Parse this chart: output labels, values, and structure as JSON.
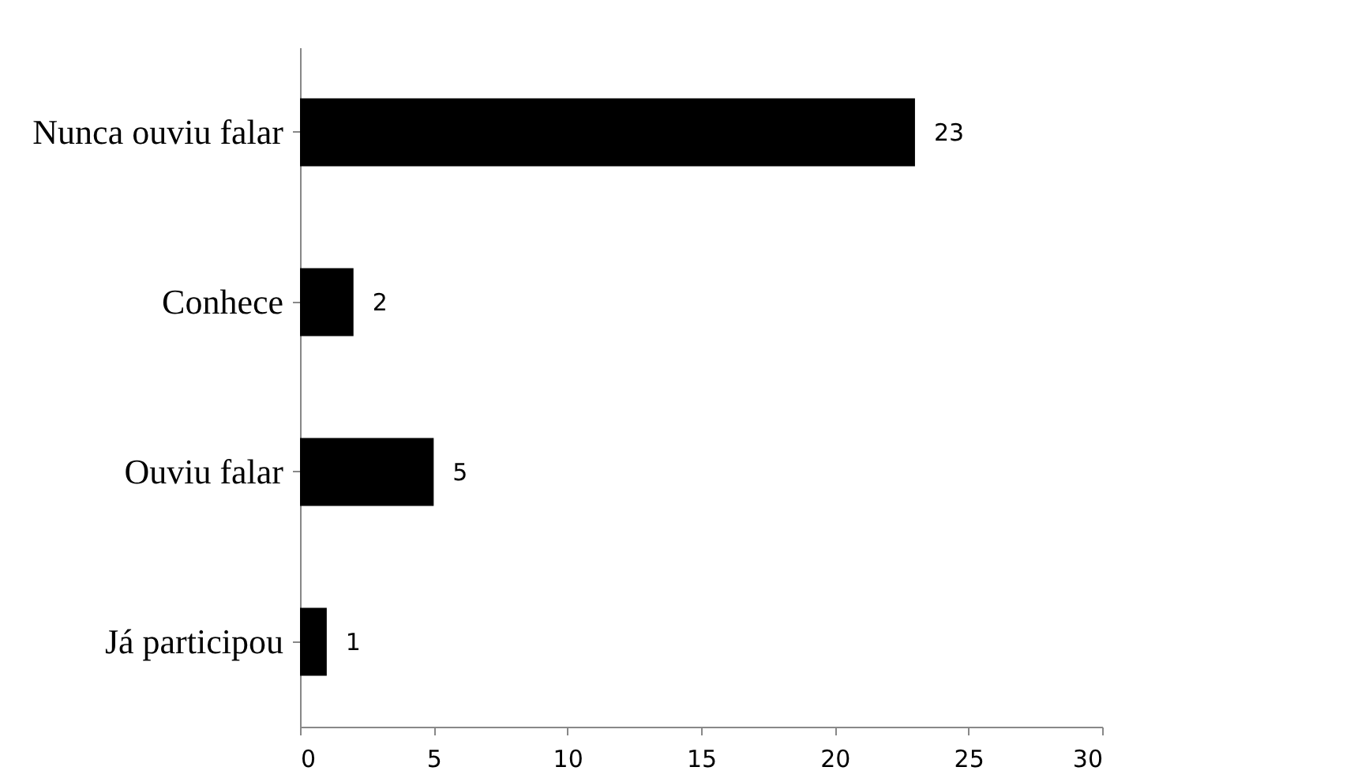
{
  "chart_data": {
    "type": "bar",
    "orientation": "horizontal",
    "categories": [
      "Nunca ouviu falar",
      "Conhece",
      "Ouviu falar",
      "Já participou"
    ],
    "values": [
      23,
      2,
      5,
      1
    ],
    "color": "#000000",
    "xlim": [
      0,
      30
    ],
    "xticks": [
      0,
      5,
      10,
      15,
      20,
      25,
      30
    ],
    "data_labels": true,
    "grid": false
  }
}
